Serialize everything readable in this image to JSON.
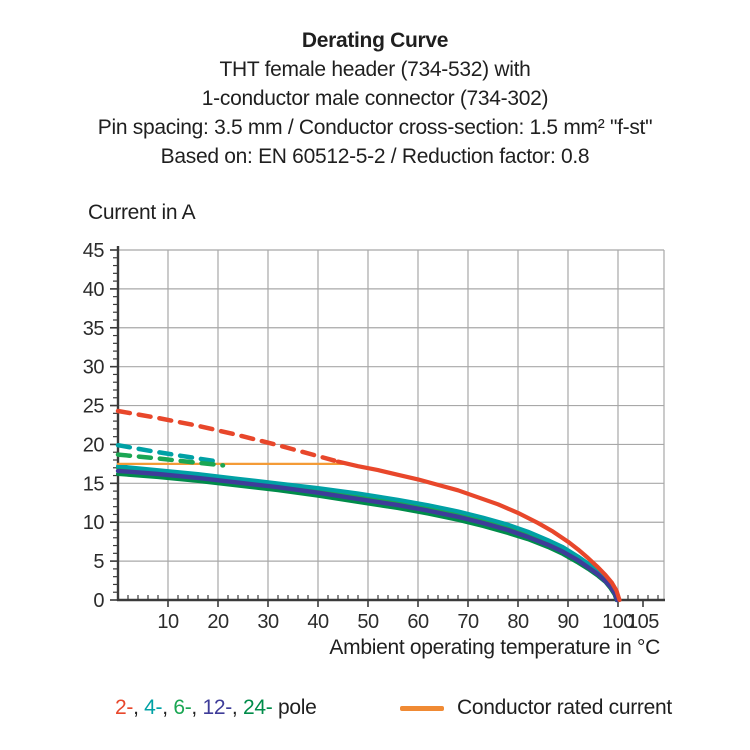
{
  "header": {
    "title": "Derating Curve",
    "subtitle_lines": [
      "THT female header (734-532) with",
      "1-conductor male connector (734-302)",
      "Pin spacing: 3.5 mm / Conductor cross-section: 1.5 mm² \"f-st\"",
      "Based on: EN 60512-5-2 / Reduction factor: 0.8"
    ]
  },
  "chart_data": {
    "type": "line",
    "title": "Derating Curve",
    "ylabel": "Current in A",
    "xlabel": "Ambient operating temperature in °C",
    "xlim": [
      0,
      109.2
    ],
    "ylim": [
      0,
      45
    ],
    "grid": true,
    "x_grid": [
      10,
      20,
      30,
      40,
      50,
      60,
      70,
      80,
      90,
      100
    ],
    "y_grid": [
      5,
      10,
      15,
      20,
      25,
      30,
      35,
      40,
      45
    ],
    "x_major_ticks": [
      10,
      20,
      30,
      40,
      50,
      60,
      70,
      80,
      90,
      100,
      105
    ],
    "y_major_ticks": [
      0,
      5,
      10,
      15,
      20,
      25,
      30,
      35,
      40,
      45
    ],
    "x_minor_step": 2,
    "y_minor_step": 1,
    "axis_color": "#3a3a3a",
    "grid_color": "#a8a8a8",
    "rated_current_value": 17.5,
    "series": [
      {
        "name": "24-pole",
        "style": "solid",
        "width": 4,
        "color": "#008c4a",
        "points": [
          [
            0,
            16.2
          ],
          [
            8,
            15.8
          ],
          [
            16,
            15.3
          ],
          [
            24,
            14.7
          ],
          [
            32,
            14.1
          ],
          [
            40,
            13.4
          ],
          [
            48,
            12.6
          ],
          [
            56,
            11.8
          ],
          [
            62,
            11.1
          ],
          [
            68,
            10.3
          ],
          [
            73,
            9.5
          ],
          [
            78,
            8.6
          ],
          [
            82,
            7.8
          ],
          [
            86,
            6.8
          ],
          [
            89,
            5.9
          ],
          [
            92,
            4.8
          ],
          [
            94,
            4.0
          ],
          [
            96,
            3.1
          ],
          [
            97.5,
            2.3
          ],
          [
            98.5,
            1.5
          ],
          [
            99.3,
            0.7
          ],
          [
            99.7,
            0
          ]
        ]
      },
      {
        "name": "6-pole",
        "style": "solid",
        "width": 4,
        "color": "#1aa653",
        "points": [
          [
            0,
            17.0
          ],
          [
            8,
            16.5
          ],
          [
            16,
            16.0
          ],
          [
            24,
            15.4
          ],
          [
            32,
            14.8
          ],
          [
            40,
            14.1
          ],
          [
            48,
            13.4
          ],
          [
            56,
            12.5
          ],
          [
            62,
            11.8
          ],
          [
            68,
            11.0
          ],
          [
            73,
            10.2
          ],
          [
            78,
            9.3
          ],
          [
            82,
            8.4
          ],
          [
            86,
            7.4
          ],
          [
            89,
            6.5
          ],
          [
            92,
            5.3
          ],
          [
            94,
            4.4
          ],
          [
            96,
            3.5
          ],
          [
            97.5,
            2.6
          ],
          [
            98.7,
            1.7
          ],
          [
            99.5,
            0.9
          ],
          [
            99.9,
            0
          ]
        ]
      },
      {
        "name": "4-pole",
        "style": "solid",
        "width": 4,
        "color": "#00a1a5",
        "points": [
          [
            0,
            17.2
          ],
          [
            8,
            16.7
          ],
          [
            16,
            16.2
          ],
          [
            24,
            15.6
          ],
          [
            32,
            15.0
          ],
          [
            40,
            14.4
          ],
          [
            48,
            13.7
          ],
          [
            56,
            12.9
          ],
          [
            62,
            12.2
          ],
          [
            68,
            11.4
          ],
          [
            73,
            10.6
          ],
          [
            78,
            9.7
          ],
          [
            82,
            8.8
          ],
          [
            86,
            7.7
          ],
          [
            89,
            6.8
          ],
          [
            92,
            5.6
          ],
          [
            94,
            4.7
          ],
          [
            96,
            3.7
          ],
          [
            97.5,
            2.8
          ],
          [
            98.8,
            1.8
          ],
          [
            99.6,
            1.0
          ],
          [
            100.0,
            0
          ]
        ]
      },
      {
        "name": "12-pole",
        "style": "solid",
        "width": 4.4,
        "color": "#3e3c99",
        "points": [
          [
            0,
            16.6
          ],
          [
            8,
            16.2
          ],
          [
            16,
            15.7
          ],
          [
            24,
            15.1
          ],
          [
            32,
            14.5
          ],
          [
            40,
            13.8
          ],
          [
            48,
            13.0
          ],
          [
            56,
            12.2
          ],
          [
            62,
            11.5
          ],
          [
            68,
            10.7
          ],
          [
            73,
            9.9
          ],
          [
            78,
            9.0
          ],
          [
            82,
            8.1
          ],
          [
            86,
            7.1
          ],
          [
            89,
            6.2
          ],
          [
            92,
            5.1
          ],
          [
            94,
            4.2
          ],
          [
            96,
            3.3
          ],
          [
            97.5,
            2.4
          ],
          [
            98.6,
            1.6
          ],
          [
            99.4,
            0.8
          ],
          [
            99.8,
            0
          ]
        ]
      },
      {
        "name": "conductor-rated-current",
        "style": "solid",
        "width": 2.2,
        "color": "#f49b36",
        "points": [
          [
            0,
            17.5
          ],
          [
            46,
            17.5
          ]
        ]
      },
      {
        "name": "2-pole",
        "style": "solid",
        "width": 4.2,
        "color": "#e8472b",
        "points": [
          [
            44,
            17.8
          ],
          [
            48,
            17.2
          ],
          [
            52,
            16.7
          ],
          [
            56,
            16.1
          ],
          [
            60,
            15.5
          ],
          [
            64,
            14.8
          ],
          [
            68,
            14.1
          ],
          [
            72,
            13.2
          ],
          [
            76,
            12.3
          ],
          [
            80,
            11.2
          ],
          [
            84,
            9.9
          ],
          [
            87,
            8.8
          ],
          [
            90,
            7.5
          ],
          [
            92,
            6.5
          ],
          [
            94,
            5.4
          ],
          [
            96,
            4.2
          ],
          [
            97.5,
            3.2
          ],
          [
            98.8,
            2.2
          ],
          [
            99.7,
            1.2
          ],
          [
            100.3,
            0
          ]
        ]
      },
      {
        "name": "2-pole-above-rated",
        "style": "dashed",
        "width": 4.5,
        "color": "#e8472b",
        "points": [
          [
            0,
            24.3
          ],
          [
            8,
            23.4
          ],
          [
            16,
            22.4
          ],
          [
            24,
            21.2
          ],
          [
            32,
            19.9
          ],
          [
            40,
            18.5
          ],
          [
            44,
            17.8
          ]
        ]
      },
      {
        "name": "4-pole-above-rated",
        "style": "dashed",
        "width": 4.5,
        "color": "#00a1a5",
        "points": [
          [
            0,
            19.9
          ],
          [
            7,
            19.1
          ],
          [
            14,
            18.4
          ],
          [
            20,
            17.8
          ]
        ]
      },
      {
        "name": "6-pole-above-rated",
        "style": "dashed",
        "width": 4.5,
        "color": "#1aa653",
        "points": [
          [
            0,
            18.7
          ],
          [
            8,
            18.2
          ],
          [
            15,
            17.7
          ],
          [
            21,
            17.3
          ]
        ]
      }
    ]
  },
  "legend": {
    "pole_entries": [
      {
        "label": "2-",
        "color": "#e8472b"
      },
      {
        "label": "4-",
        "color": "#00a1a5"
      },
      {
        "label": "6-",
        "color": "#1aa653"
      },
      {
        "label": "12-",
        "color": "#3e3c99"
      },
      {
        "label": "24-",
        "color": "#008c4a"
      }
    ],
    "separator": ", ",
    "suffix": " pole",
    "rated": {
      "label": "Conductor rated current",
      "color": "#f08a34"
    }
  }
}
